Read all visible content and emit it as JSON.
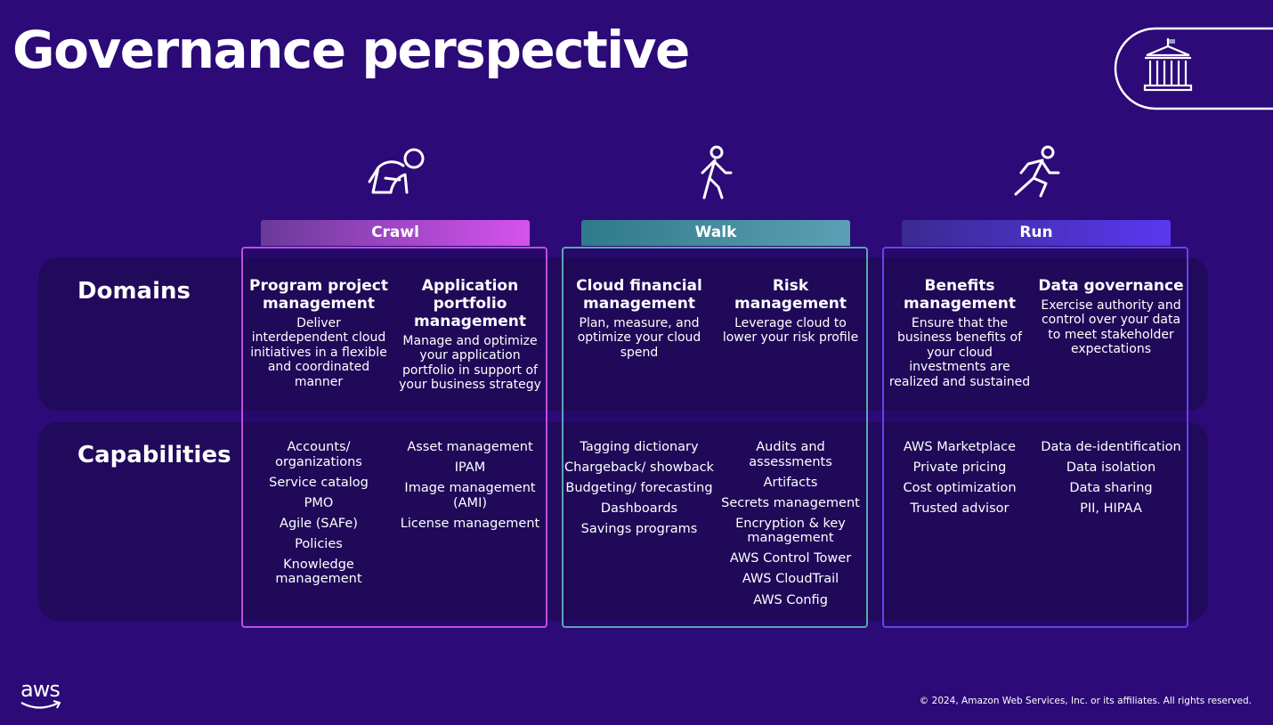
{
  "title": "Governance perspective",
  "rows": {
    "domains": "Domains",
    "capabilities": "Capabilities"
  },
  "stages": [
    {
      "name": "Crawl",
      "domains": [
        {
          "title": "Program project management",
          "description": "Deliver interdependent cloud initiatives in a flexible and coordinated manner"
        },
        {
          "title": "Application portfolio management",
          "description": "Manage and optimize your application portfolio in support of your business strategy"
        }
      ],
      "capabilities": [
        [
          "Accounts/ organizations",
          "Service catalog",
          "PMO",
          "Agile (SAFe)",
          "Policies",
          "Knowledge management"
        ],
        [
          "Asset management",
          "IPAM",
          "Image management (AMI)",
          "License management"
        ]
      ]
    },
    {
      "name": "Walk",
      "domains": [
        {
          "title": "Cloud financial management",
          "description": "Plan, measure, and optimize your cloud spend"
        },
        {
          "title": "Risk management",
          "description": "Leverage cloud to lower your risk profile"
        }
      ],
      "capabilities": [
        [
          "Tagging dictionary",
          "Chargeback/ showback",
          "Budgeting/ forecasting",
          "Dashboards",
          "Savings programs"
        ],
        [
          "Audits and assessments",
          "Artifacts",
          "Secrets management",
          "Encryption & key management",
          "AWS Control Tower",
          "AWS CloudTrail",
          "AWS Config"
        ]
      ]
    },
    {
      "name": "Run",
      "domains": [
        {
          "title": "Benefits management",
          "description": "Ensure that the business benefits of your cloud investments are realized and sustained"
        },
        {
          "title": "Data governance",
          "description": "Exercise authority and control over your data to meet stakeholder expectations"
        }
      ],
      "capabilities": [
        [
          "AWS Marketplace",
          "Private pricing",
          "Cost optimization",
          "Trusted advisor"
        ],
        [
          "Data de-identification",
          "Data isolation",
          "Data sharing",
          "PII, HIPAA"
        ]
      ]
    }
  ],
  "footer": {
    "logo": "aws",
    "copyright": "© 2024, Amazon Web Services, Inc. or its affiliates. All rights reserved."
  }
}
